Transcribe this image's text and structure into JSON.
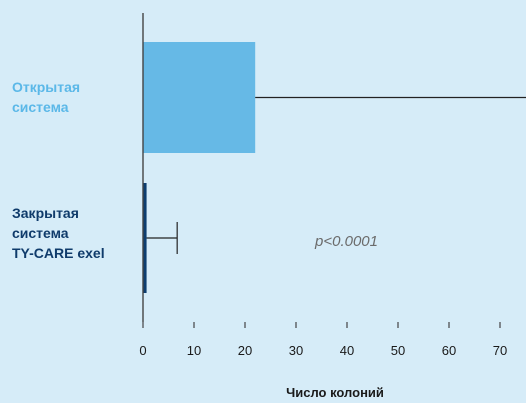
{
  "chart_data": {
    "type": "bar",
    "orientation": "horizontal",
    "categories": [
      {
        "lines": [
          "Открытая",
          "система"
        ],
        "color": "#5bb8e8"
      },
      {
        "lines": [
          "Закрытая",
          "система",
          "TY-CARE exel"
        ],
        "color": "#0f3b6b"
      }
    ],
    "values": [
      22,
      0.7
    ],
    "error_upper": [
      100,
      6.7
    ],
    "bar_colors": [
      "#66b9e6",
      "#0d3d6f"
    ],
    "xlabel": "Число колоний",
    "ylabel": "",
    "title": "",
    "x_ticks": [
      0,
      10,
      20,
      30,
      40,
      50,
      60,
      70
    ],
    "x_tick_labels": [
      "0",
      "10",
      "20",
      "30",
      "40",
      "50",
      "60",
      "70"
    ],
    "annotation": "p<0.0001",
    "grid": false
  }
}
